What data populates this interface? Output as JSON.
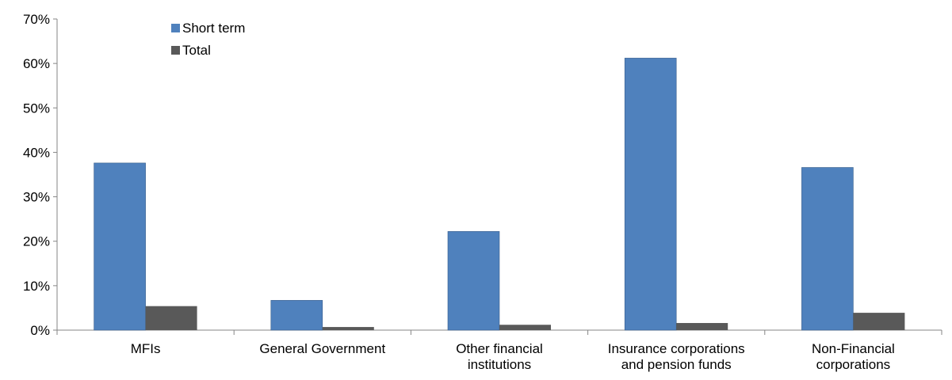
{
  "chart_data": {
    "type": "bar",
    "categories": [
      [
        "MFIs"
      ],
      [
        "General Government"
      ],
      [
        "Other financial",
        "institutions"
      ],
      [
        "Insurance corporations",
        "and pension funds"
      ],
      [
        "Non-Financial",
        "corporations"
      ]
    ],
    "series": [
      {
        "name": "Short term",
        "color": "#4F81BD",
        "values": [
          37.6,
          6.7,
          22.2,
          61.2,
          36.6
        ]
      },
      {
        "name": "Total",
        "color": "#595959",
        "values": [
          5.4,
          0.7,
          1.2,
          1.6,
          3.9
        ]
      }
    ],
    "y_ticks": [
      "0%",
      "10%",
      "20%",
      "30%",
      "40%",
      "50%",
      "60%",
      "70%"
    ],
    "ylim": [
      0,
      70
    ],
    "grid": false,
    "legend_position": "top-left"
  }
}
